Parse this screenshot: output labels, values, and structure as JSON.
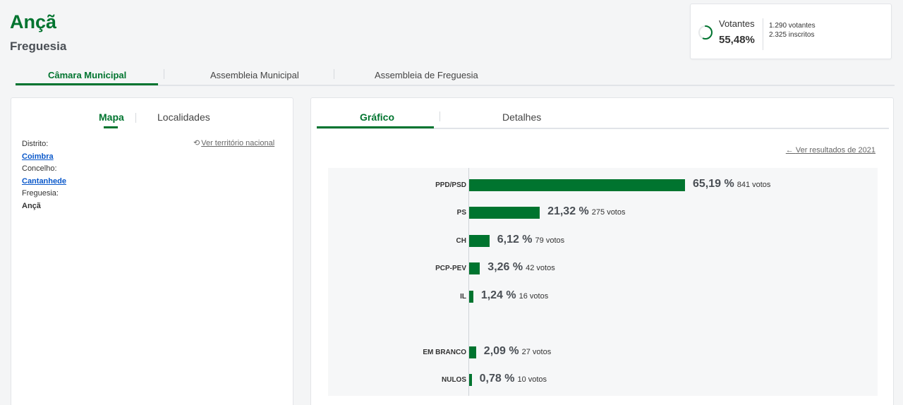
{
  "header": {
    "title": "Ançã",
    "subtitle": "Freguesia"
  },
  "turnout": {
    "label": "Votantes",
    "percent": "55,48%",
    "percent_value": 55.48,
    "voters": "1.290 votantes",
    "registered": "2.325 inscritos"
  },
  "main_tabs": [
    {
      "label": "Câmara Municipal",
      "active": true
    },
    {
      "label": "Assembleia Municipal",
      "active": false
    },
    {
      "label": "Assembleia de Freguesia",
      "active": false
    }
  ],
  "left_panel": {
    "tabs": [
      {
        "label": "Mapa",
        "active": true
      },
      {
        "label": "Localidades",
        "active": false
      }
    ],
    "reset_link": "Ver território nacional",
    "district_label": "Distrito:",
    "district": "Coimbra",
    "county_label": "Concelho:",
    "county": "Cantanhede",
    "parish_label": "Freguesia:",
    "parish": "Ançã"
  },
  "right_panel": {
    "tabs": [
      {
        "label": "Gráfico",
        "active": true
      },
      {
        "label": "Detalhes",
        "active": false
      }
    ],
    "prev_results_link": "Ver resultados de 2021"
  },
  "colors": {
    "accent": "#00742f",
    "link": "#0a58ca"
  },
  "chart_data": {
    "type": "bar",
    "orientation": "horizontal",
    "categories": [
      "PPD/PSD",
      "PS",
      "CH",
      "PCP-PEV",
      "IL",
      "EM BRANCO",
      "NULOS"
    ],
    "values": [
      65.19,
      21.32,
      6.12,
      3.26,
      1.24,
      2.09,
      0.78
    ],
    "percent_labels": [
      "65,19 %",
      "21,32 %",
      "6,12 %",
      "3,26 %",
      "1,24 %",
      "2,09 %",
      "0,78 %"
    ],
    "votes": [
      841,
      275,
      79,
      42,
      16,
      27,
      10
    ],
    "votes_labels": [
      "841 votos",
      "275 votos",
      "79 votos",
      "42 votos",
      "16 votos",
      "27 votos",
      "10 votos"
    ],
    "title": "",
    "xlabel": "",
    "ylabel": "",
    "xlim": [
      0,
      100
    ],
    "grid": false
  }
}
